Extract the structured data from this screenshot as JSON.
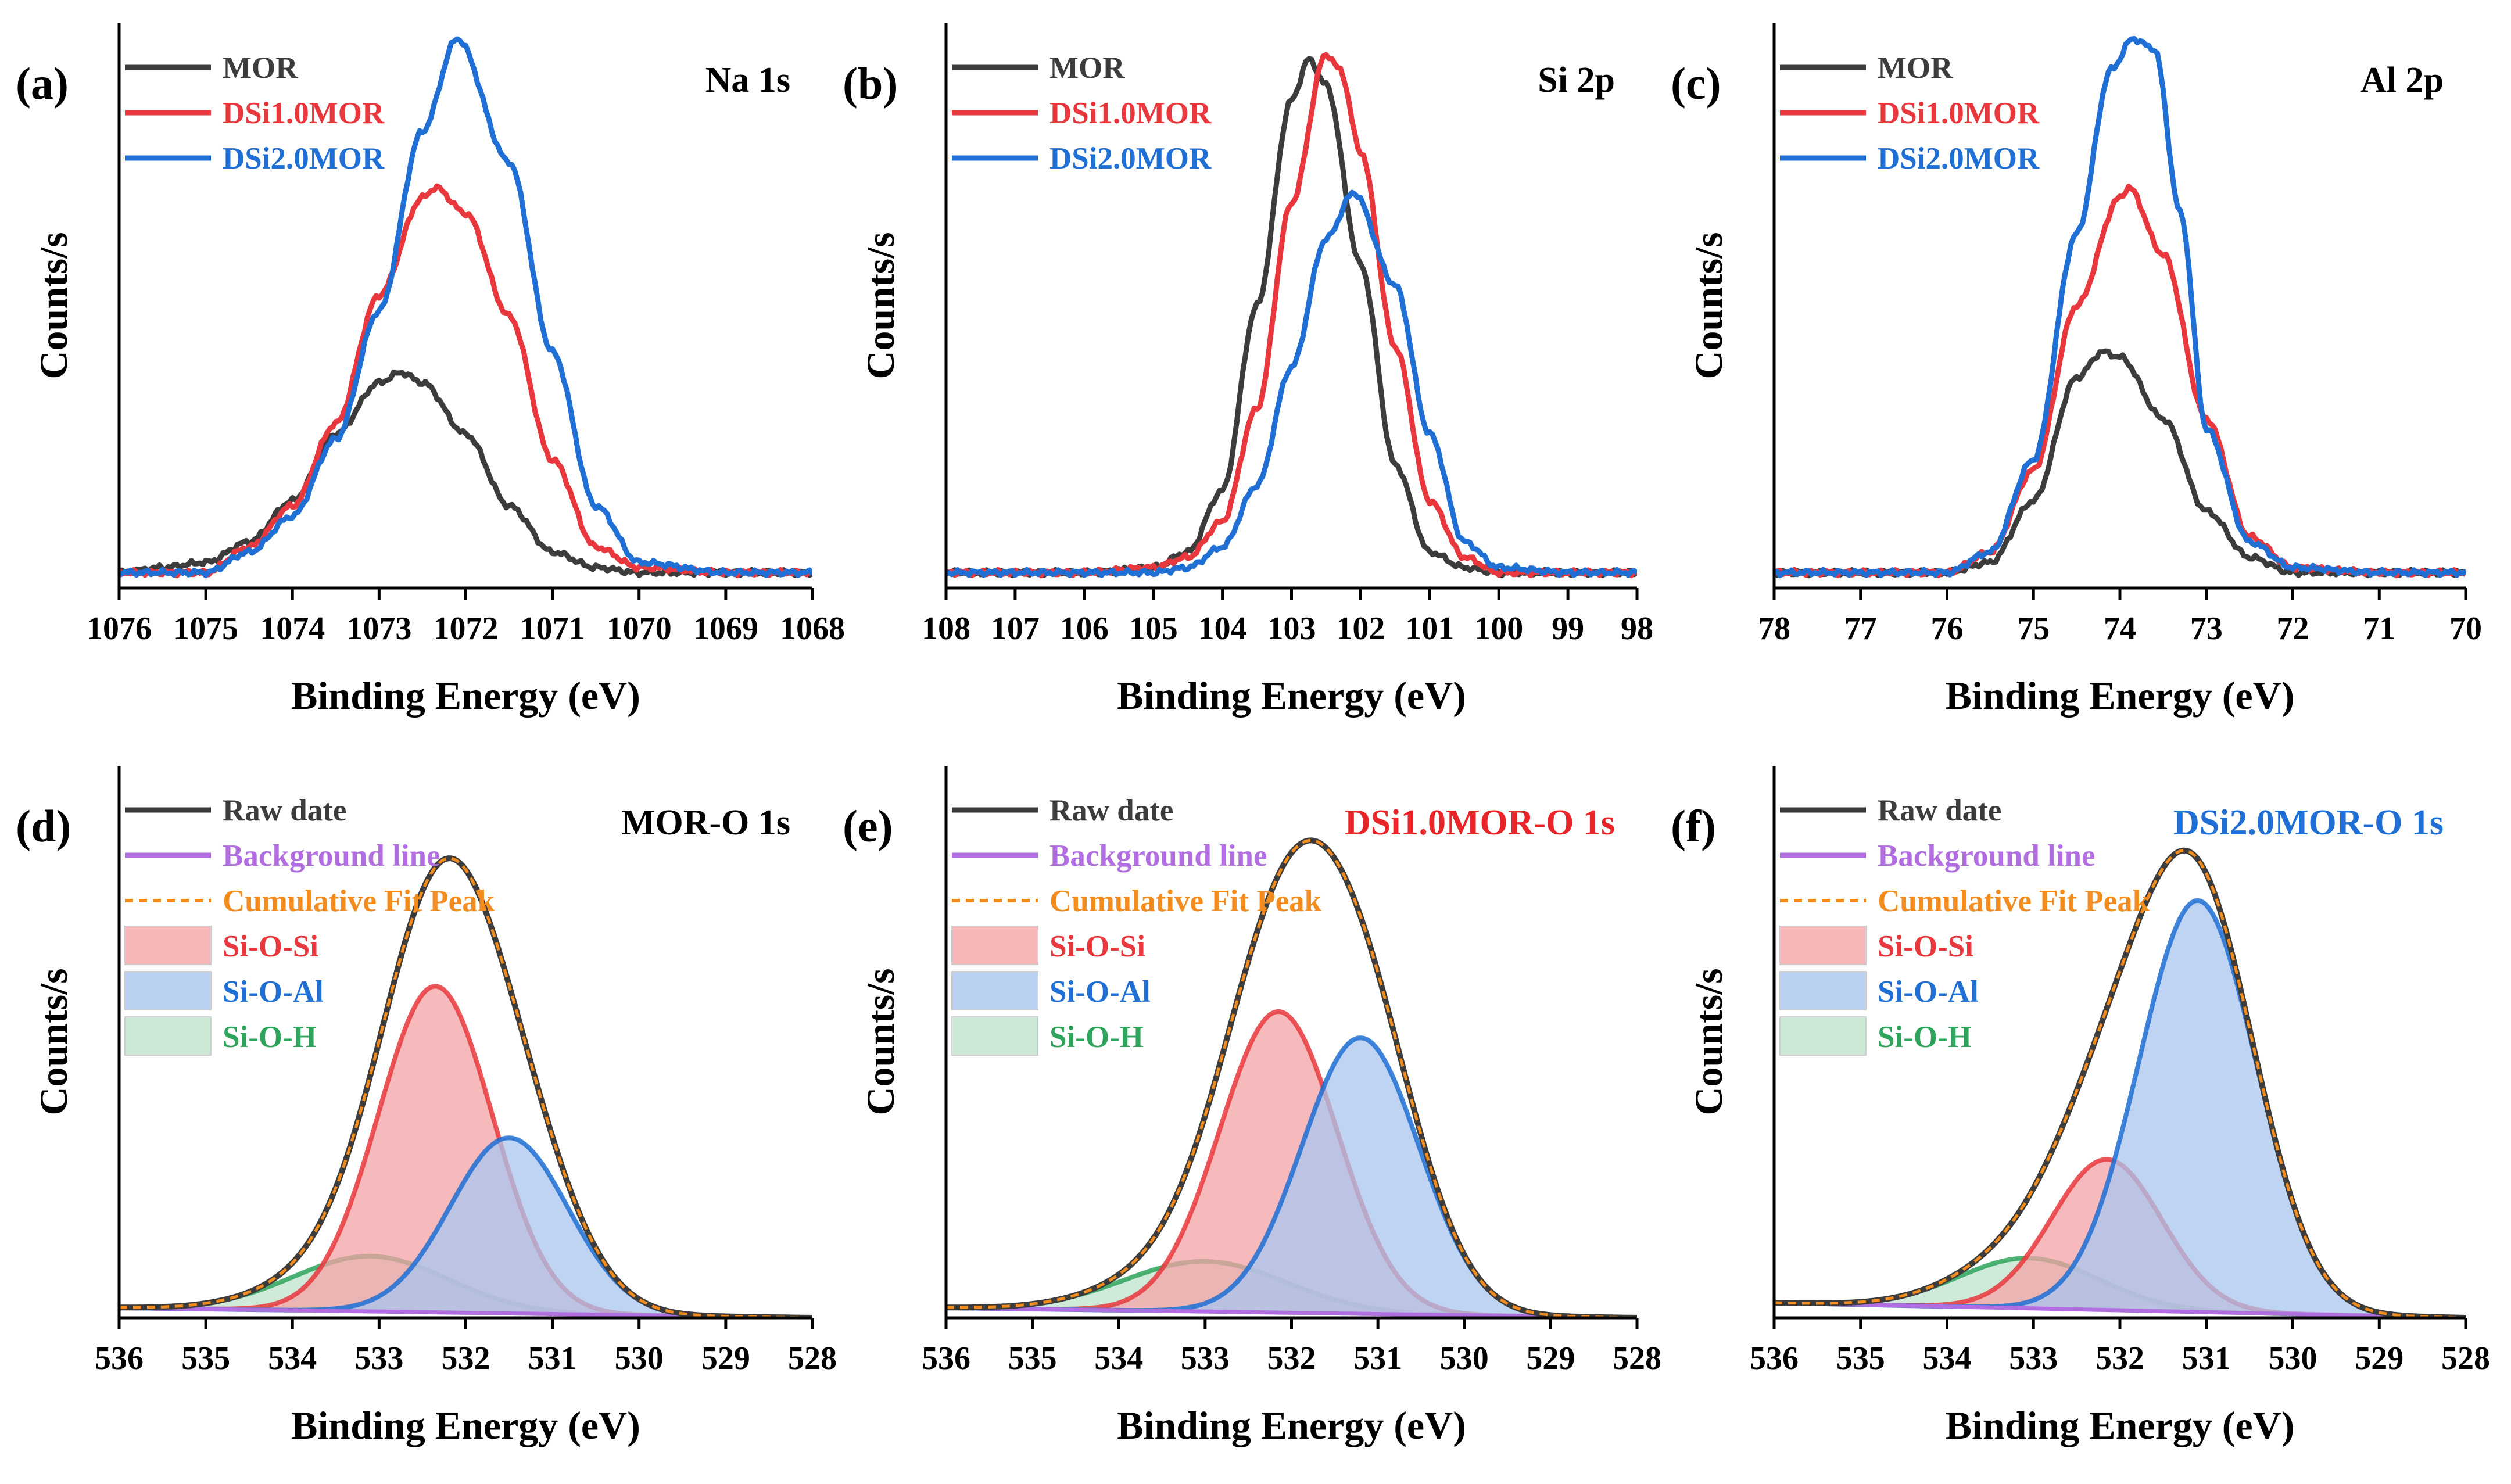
{
  "chart_data": [
    {
      "id": "a",
      "type": "line",
      "panel_label": "(a)",
      "title": "Na 1s",
      "xlabel": "Binding Energy (eV)",
      "ylabel": "Counts/s",
      "xlim": [
        1076,
        1068
      ],
      "ylim": [
        0,
        1.1
      ],
      "xticks": [
        1076,
        1075,
        1074,
        1073,
        1072,
        1071,
        1070,
        1069,
        1068
      ],
      "series": [
        {
          "name": "MOR",
          "color": "#3c3c3c",
          "x": [
            1076,
            1075.5,
            1075,
            1074.5,
            1074,
            1073.5,
            1073,
            1072.75,
            1072.5,
            1072,
            1071.5,
            1071,
            1070.5,
            1070,
            1069,
            1068
          ],
          "y": [
            0.0,
            0.01,
            0.02,
            0.06,
            0.14,
            0.27,
            0.37,
            0.39,
            0.37,
            0.27,
            0.13,
            0.04,
            0.01,
            0.0,
            0.0,
            0.0
          ]
        },
        {
          "name": "DSi1.0MOR",
          "color": "#e8383d",
          "x": [
            1076,
            1075,
            1074.5,
            1074,
            1073.5,
            1073,
            1072.5,
            1072.35,
            1072,
            1071.5,
            1071,
            1070.5,
            1070,
            1069,
            1068
          ],
          "y": [
            0.0,
            0.0,
            0.05,
            0.13,
            0.29,
            0.54,
            0.73,
            0.75,
            0.7,
            0.5,
            0.22,
            0.05,
            0.01,
            0.0,
            0.0
          ]
        },
        {
          "name": "DSi2.0MOR",
          "color": "#1f6fd4",
          "x": [
            1076,
            1075,
            1074.5,
            1074,
            1073.5,
            1073,
            1072.5,
            1072.1,
            1071.5,
            1071,
            1070.5,
            1070,
            1069,
            1068
          ],
          "y": [
            0.0,
            0.0,
            0.04,
            0.11,
            0.26,
            0.51,
            0.86,
            1.04,
            0.8,
            0.43,
            0.13,
            0.02,
            0.0,
            0.0
          ]
        }
      ],
      "legend": [
        "MOR",
        "DSi1.0MOR",
        "DSi2.0MOR"
      ]
    },
    {
      "id": "b",
      "type": "line",
      "panel_label": "(b)",
      "title": "Si 2p",
      "xlabel": "Binding Energy (eV)",
      "ylabel": "Counts/s",
      "xlim": [
        108,
        98
      ],
      "ylim": [
        0,
        1.1
      ],
      "xticks": [
        108,
        107,
        106,
        105,
        104,
        103,
        102,
        101,
        100,
        99,
        98
      ],
      "series": [
        {
          "name": "MOR",
          "color": "#3c3c3c",
          "x": [
            108,
            106,
            105,
            104.5,
            104,
            103.5,
            103,
            102.75,
            102.5,
            102,
            101.5,
            101,
            100.5,
            100,
            99,
            98
          ],
          "y": [
            0.0,
            0.0,
            0.01,
            0.04,
            0.16,
            0.52,
            0.92,
            1.0,
            0.95,
            0.6,
            0.21,
            0.04,
            0.01,
            0.0,
            0.0,
            0.0
          ]
        },
        {
          "name": "DSi1.0MOR",
          "color": "#e8383d",
          "x": [
            108,
            106,
            105,
            104.5,
            104,
            103.5,
            103,
            102.5,
            102.3,
            102,
            101.5,
            101,
            100.5,
            100,
            99,
            98
          ],
          "y": [
            0.0,
            0.0,
            0.01,
            0.03,
            0.1,
            0.32,
            0.72,
            1.01,
            0.98,
            0.82,
            0.44,
            0.14,
            0.03,
            0.0,
            0.0,
            0.0
          ]
        },
        {
          "name": "DSi2.0MOR",
          "color": "#1f6fd4",
          "x": [
            108,
            105,
            104.5,
            104,
            103.5,
            103,
            102.5,
            102.1,
            101.5,
            101,
            100.5,
            100,
            99,
            98
          ],
          "y": [
            0.0,
            0.0,
            0.01,
            0.05,
            0.17,
            0.4,
            0.65,
            0.74,
            0.56,
            0.27,
            0.06,
            0.01,
            0.0,
            0.0
          ]
        }
      ],
      "legend": [
        "MOR",
        "DSi1.0MOR",
        "DSi2.0MOR"
      ]
    },
    {
      "id": "c",
      "type": "line",
      "panel_label": "(c)",
      "title": "Al 2p",
      "xlabel": "Binding Energy (eV)",
      "ylabel": "Counts/s",
      "xlim": [
        78,
        70
      ],
      "ylim": [
        0,
        1.1
      ],
      "xticks": [
        78,
        77,
        76,
        75,
        74,
        73,
        72,
        71,
        70
      ],
      "series": [
        {
          "name": "MOR",
          "color": "#3c3c3c",
          "x": [
            78,
            76,
            75.5,
            75,
            74.5,
            74.2,
            74,
            73.5,
            73,
            72.5,
            72,
            71,
            70
          ],
          "y": [
            0.0,
            0.0,
            0.02,
            0.14,
            0.38,
            0.43,
            0.42,
            0.3,
            0.12,
            0.03,
            0.0,
            0.0,
            0.0
          ]
        },
        {
          "name": "DSi1.0MOR",
          "color": "#e8383d",
          "x": [
            78,
            76,
            75.5,
            75,
            74.5,
            74,
            73.9,
            73.5,
            73,
            72.5,
            72,
            71,
            70
          ],
          "y": [
            0.0,
            0.0,
            0.04,
            0.2,
            0.52,
            0.73,
            0.75,
            0.62,
            0.3,
            0.07,
            0.01,
            0.0,
            0.0
          ]
        },
        {
          "name": "DSi2.0MOR",
          "color": "#1f6fd4",
          "x": [
            78,
            76,
            75.5,
            75,
            74.5,
            74.1,
            73.85,
            73.6,
            73.3,
            73,
            72.5,
            72,
            71,
            70
          ],
          "y": [
            0.0,
            0.0,
            0.04,
            0.22,
            0.66,
            0.98,
            1.04,
            1.02,
            0.7,
            0.28,
            0.06,
            0.01,
            0.0,
            0.0
          ]
        }
      ],
      "legend": [
        "MOR",
        "DSi1.0MOR",
        "DSi2.0MOR"
      ]
    },
    {
      "id": "d",
      "type": "area",
      "panel_label": "(d)",
      "title": "MOR-O 1s",
      "xlabel": "Binding Energy (eV)",
      "ylabel": "Counts/s",
      "xlim": [
        536,
        528
      ],
      "ylim": [
        0,
        1.1
      ],
      "xticks": [
        536,
        535,
        534,
        533,
        532,
        531,
        530,
        529,
        528
      ],
      "background": {
        "start": 0.02,
        "end": 0.0
      },
      "peaks": [
        {
          "name": "Si-O-Si",
          "center": 532.35,
          "height": 0.65,
          "fwhm": 1.55
        },
        {
          "name": "Si-O-Al",
          "center": 531.5,
          "height": 0.35,
          "fwhm": 1.6
        },
        {
          "name": "Si-O-H",
          "center": 533.1,
          "height": 0.11,
          "fwhm": 2.1
        }
      ],
      "legend": [
        "Raw date",
        "Background line",
        "Cumulative Fit Peak",
        "Si-O-Si",
        "Si-O-Al",
        "Si-O-H"
      ]
    },
    {
      "id": "e",
      "type": "area",
      "panel_label": "(e)",
      "title": "DSi1.0MOR-O 1s",
      "xlabel": "Binding Energy (eV)",
      "ylabel": "Counts/s",
      "xlim": [
        536,
        528
      ],
      "ylim": [
        0,
        1.1
      ],
      "xticks": [
        536,
        535,
        534,
        533,
        532,
        531,
        530,
        529,
        528
      ],
      "background": {
        "start": 0.02,
        "end": 0.0
      },
      "peaks": [
        {
          "name": "Si-O-Si",
          "center": 532.15,
          "height": 0.6,
          "fwhm": 1.6
        },
        {
          "name": "Si-O-Al",
          "center": 531.2,
          "height": 0.55,
          "fwhm": 1.6
        },
        {
          "name": "Si-O-H",
          "center": 533.0,
          "height": 0.1,
          "fwhm": 2.2
        }
      ],
      "legend": [
        "Raw date",
        "Background line",
        "Cumulative Fit Peak",
        "Si-O-Si",
        "Si-O-Al",
        "Si-O-H"
      ]
    },
    {
      "id": "f",
      "type": "area",
      "panel_label": "(f)",
      "title": "DSi2.0MOR-O 1s",
      "xlabel": "Binding Energy (eV)",
      "ylabel": "Counts/s",
      "xlim": [
        536,
        528
      ],
      "ylim": [
        0,
        1.1
      ],
      "xticks": [
        536,
        535,
        534,
        533,
        532,
        531,
        530,
        529,
        528
      ],
      "background": {
        "start": 0.03,
        "end": 0.0
      },
      "peaks": [
        {
          "name": "Si-O-Si",
          "center": 532.15,
          "height": 0.3,
          "fwhm": 1.5
        },
        {
          "name": "Si-O-Al",
          "center": 531.1,
          "height": 0.82,
          "fwhm": 1.6
        },
        {
          "name": "Si-O-H",
          "center": 533.05,
          "height": 0.1,
          "fwhm": 1.9
        }
      ],
      "legend": [
        "Raw date",
        "Background line",
        "Cumulative Fit Peak",
        "Si-O-Si",
        "Si-O-Al",
        "Si-O-H"
      ]
    }
  ],
  "colors": {
    "MOR": "#3c3c3c",
    "DSi1.0MOR": "#e8383d",
    "DSi2.0MOR": "#1f6fd4",
    "Raw date": "#3c3c3c",
    "Background line": "#b06ee0",
    "Cumulative Fit Peak": "#f28c1e",
    "Si-O-Si": "#e8383d",
    "Si-O-Al": "#1f6fd4",
    "Si-O-H": "#2ea35b",
    "Si-O-Si-fill": "#f4a3a5",
    "Si-O-Al-fill": "#a9c6ef",
    "Si-O-H-fill": "#bfe3cc",
    "title-MOR-O 1s": "#000000",
    "title-DSi1.0MOR-O 1s": "#e8262a",
    "title-DSi2.0MOR-O 1s": "#1f6fd4"
  }
}
